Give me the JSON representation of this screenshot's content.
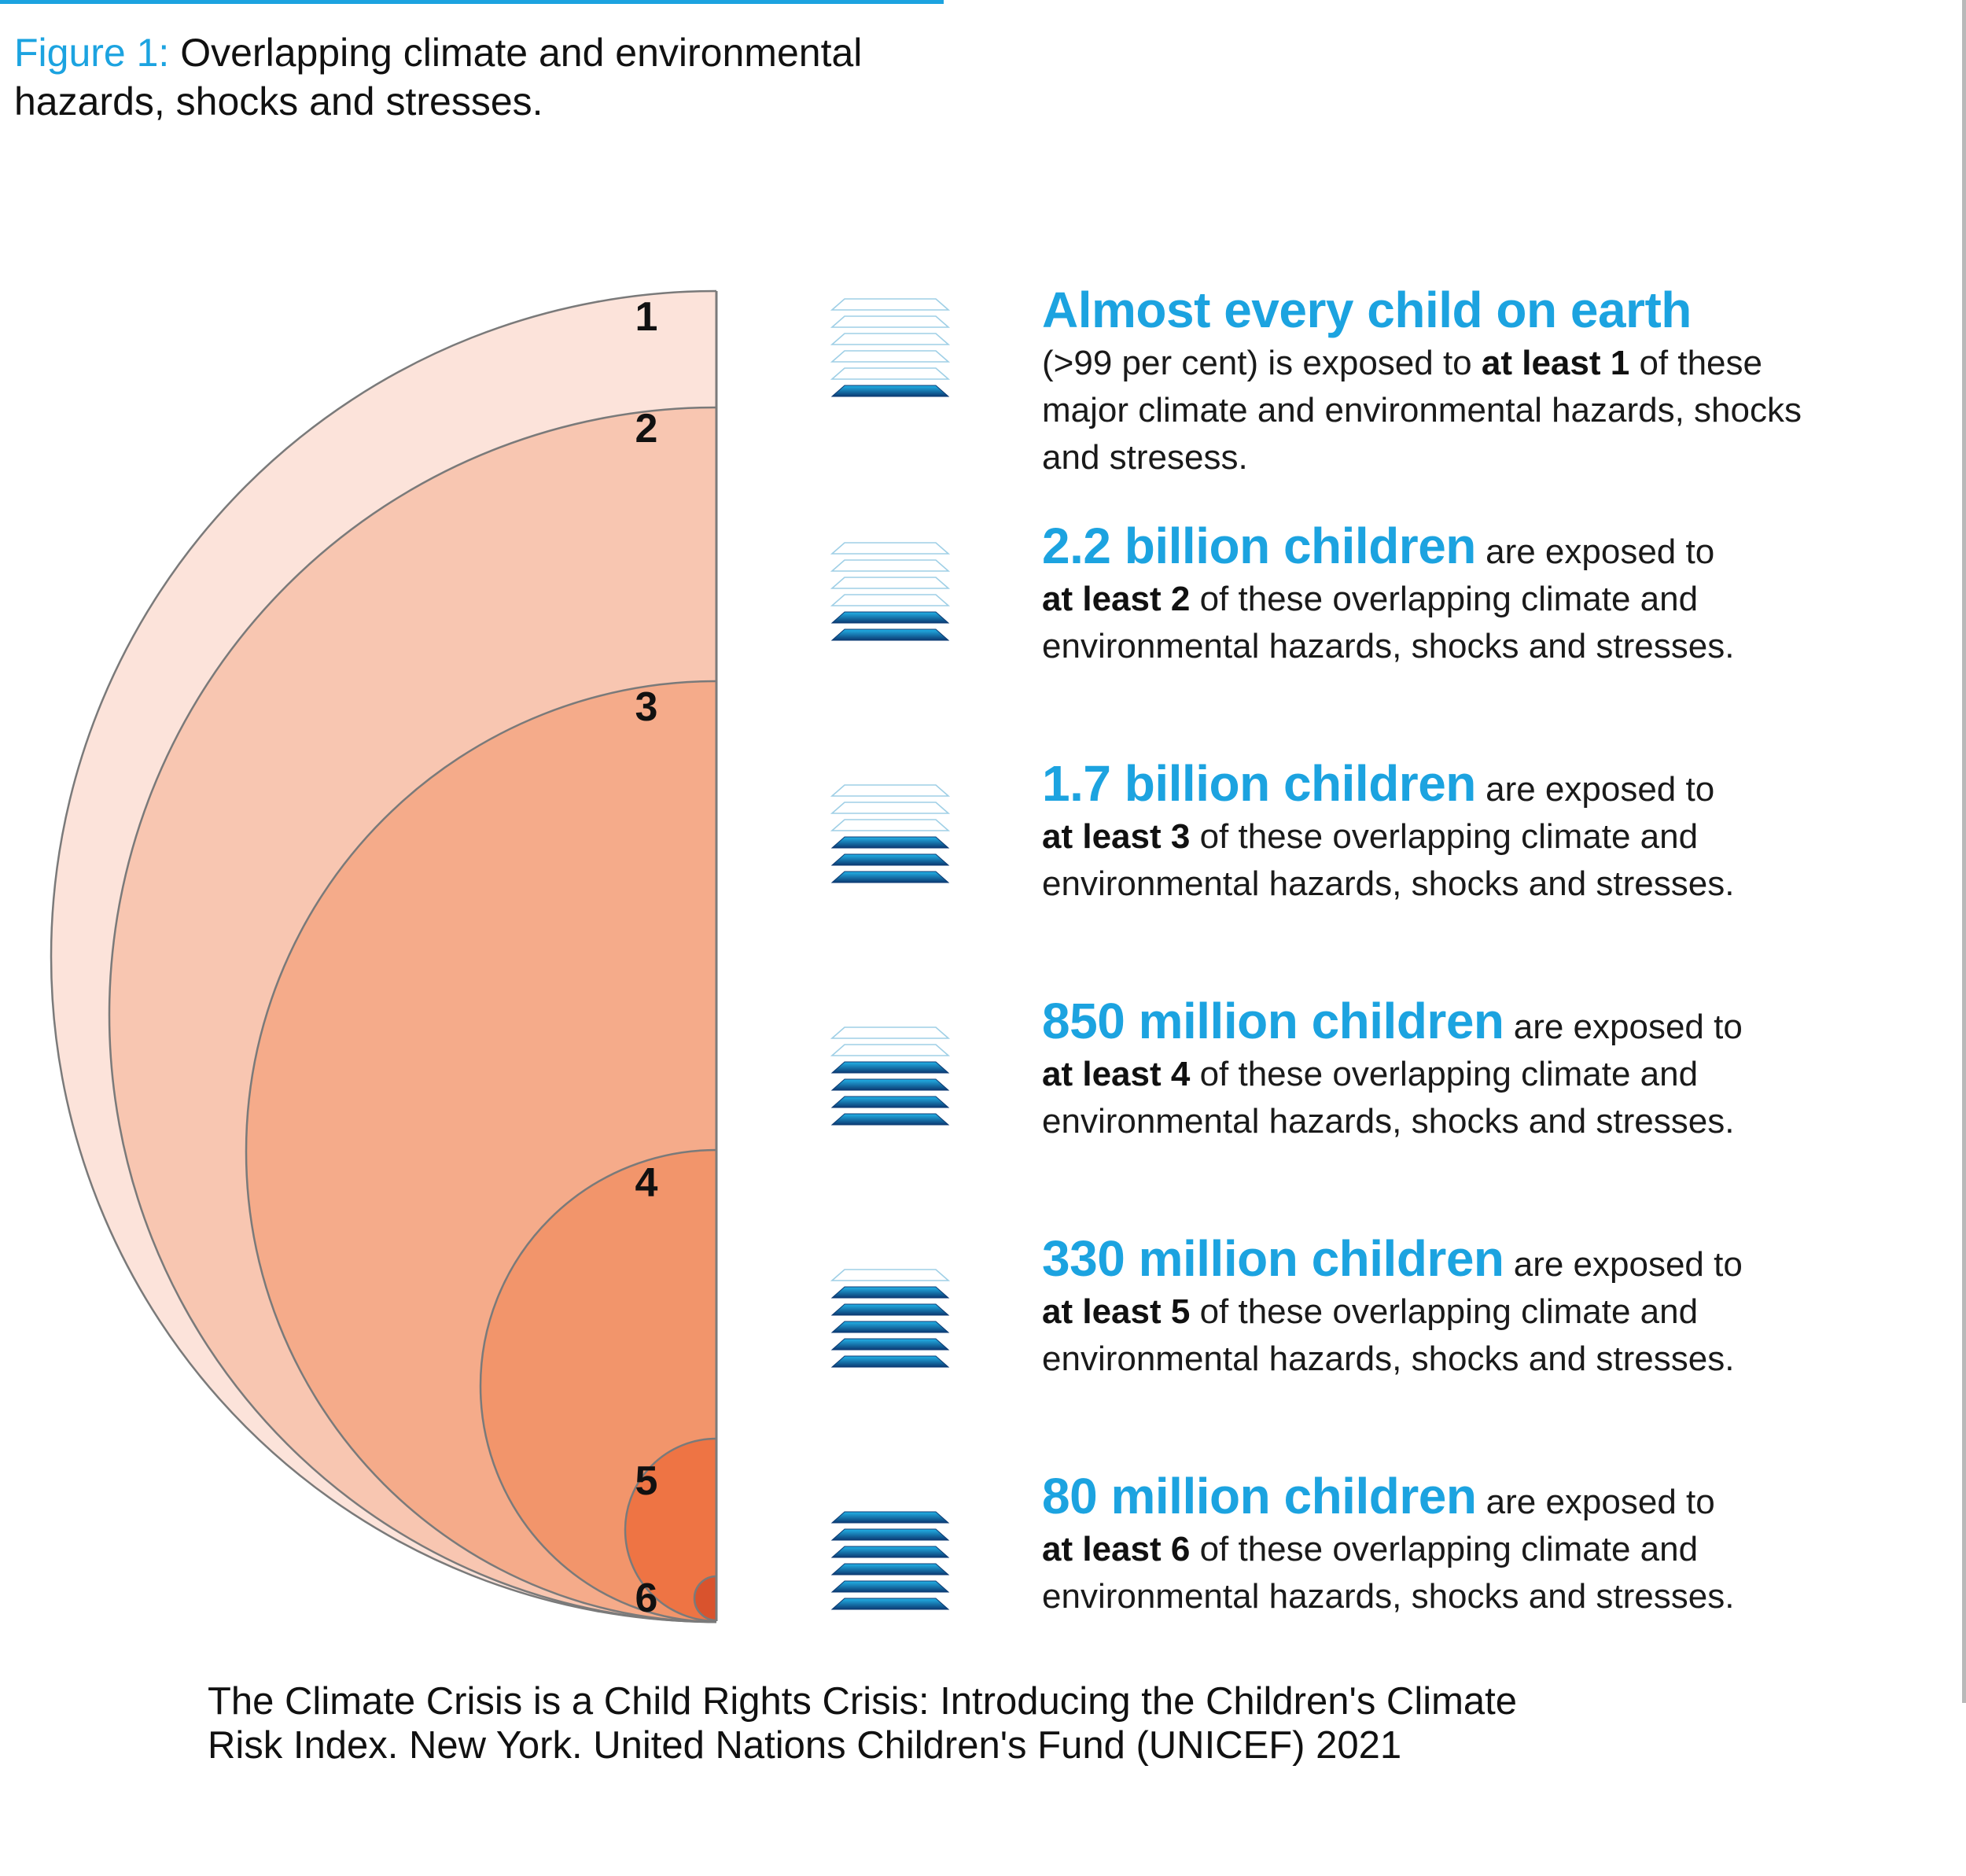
{
  "figure": {
    "number": "Figure 1:",
    "title": "Overlapping climate and environmental hazards, shocks and stresses."
  },
  "colors": {
    "accent_blue": "#1ca3e0",
    "ring_fills": [
      "#fce3da",
      "#f8c6b1",
      "#f5ab8a",
      "#f2956b",
      "#ee7444",
      "#d9532d"
    ],
    "ring_stroke": "#7a7a7a",
    "stack_dark": "#0b3a73",
    "stack_light": "#23b3e8"
  },
  "rings": [
    {
      "label": "1",
      "children": "Almost every child on earth",
      "share_note": ">99 per cent"
    },
    {
      "label": "2",
      "children": "2.2 billion children"
    },
    {
      "label": "3",
      "children": "1.7 billion children"
    },
    {
      "label": "4",
      "children": "850 million children"
    },
    {
      "label": "5",
      "children": "330 million children"
    },
    {
      "label": "6",
      "children": "80 million children"
    }
  ],
  "stats": [
    {
      "headline": "Almost every child on earth",
      "lead": "",
      "pre": "(>99 per cent) is exposed to ",
      "bold": "at least 1",
      "post": " of these major climate and environmental hazards, shocks and stresess.",
      "filled_layers": 1
    },
    {
      "headline": "2.2 billion children",
      "lead": " are exposed to",
      "pre": "",
      "bold": "at least 2",
      "post": " of these overlapping climate and environmental hazards, shocks and stresses.",
      "filled_layers": 2
    },
    {
      "headline": "1.7 billion children",
      "lead": " are exposed to",
      "pre": "",
      "bold": "at least 3",
      "post": " of these overlapping climate and environmental hazards, shocks and stresses.",
      "filled_layers": 3
    },
    {
      "headline": "850 million children",
      "lead": " are exposed to",
      "pre": "",
      "bold": "at least 4",
      "post": " of these overlapping climate and environmental hazards, shocks and stresses.",
      "filled_layers": 4
    },
    {
      "headline": "330 million children",
      "lead": " are exposed to",
      "pre": "",
      "bold": "at least 5",
      "post": " of these overlapping climate and environmental hazards, shocks and stresses.",
      "filled_layers": 5
    },
    {
      "headline": "80 million children",
      "lead": " are exposed to",
      "pre": "",
      "bold": "at least 6",
      "post": " of these overlapping climate and environmental hazards, shocks and stresses.",
      "filled_layers": 6
    }
  ],
  "source": {
    "line1": "The Climate Crisis is a Child Rights Crisis: Introducing the Children's Climate",
    "line2": "Risk Index. New York. United Nations Children's Fund (UNICEF) 2021"
  }
}
